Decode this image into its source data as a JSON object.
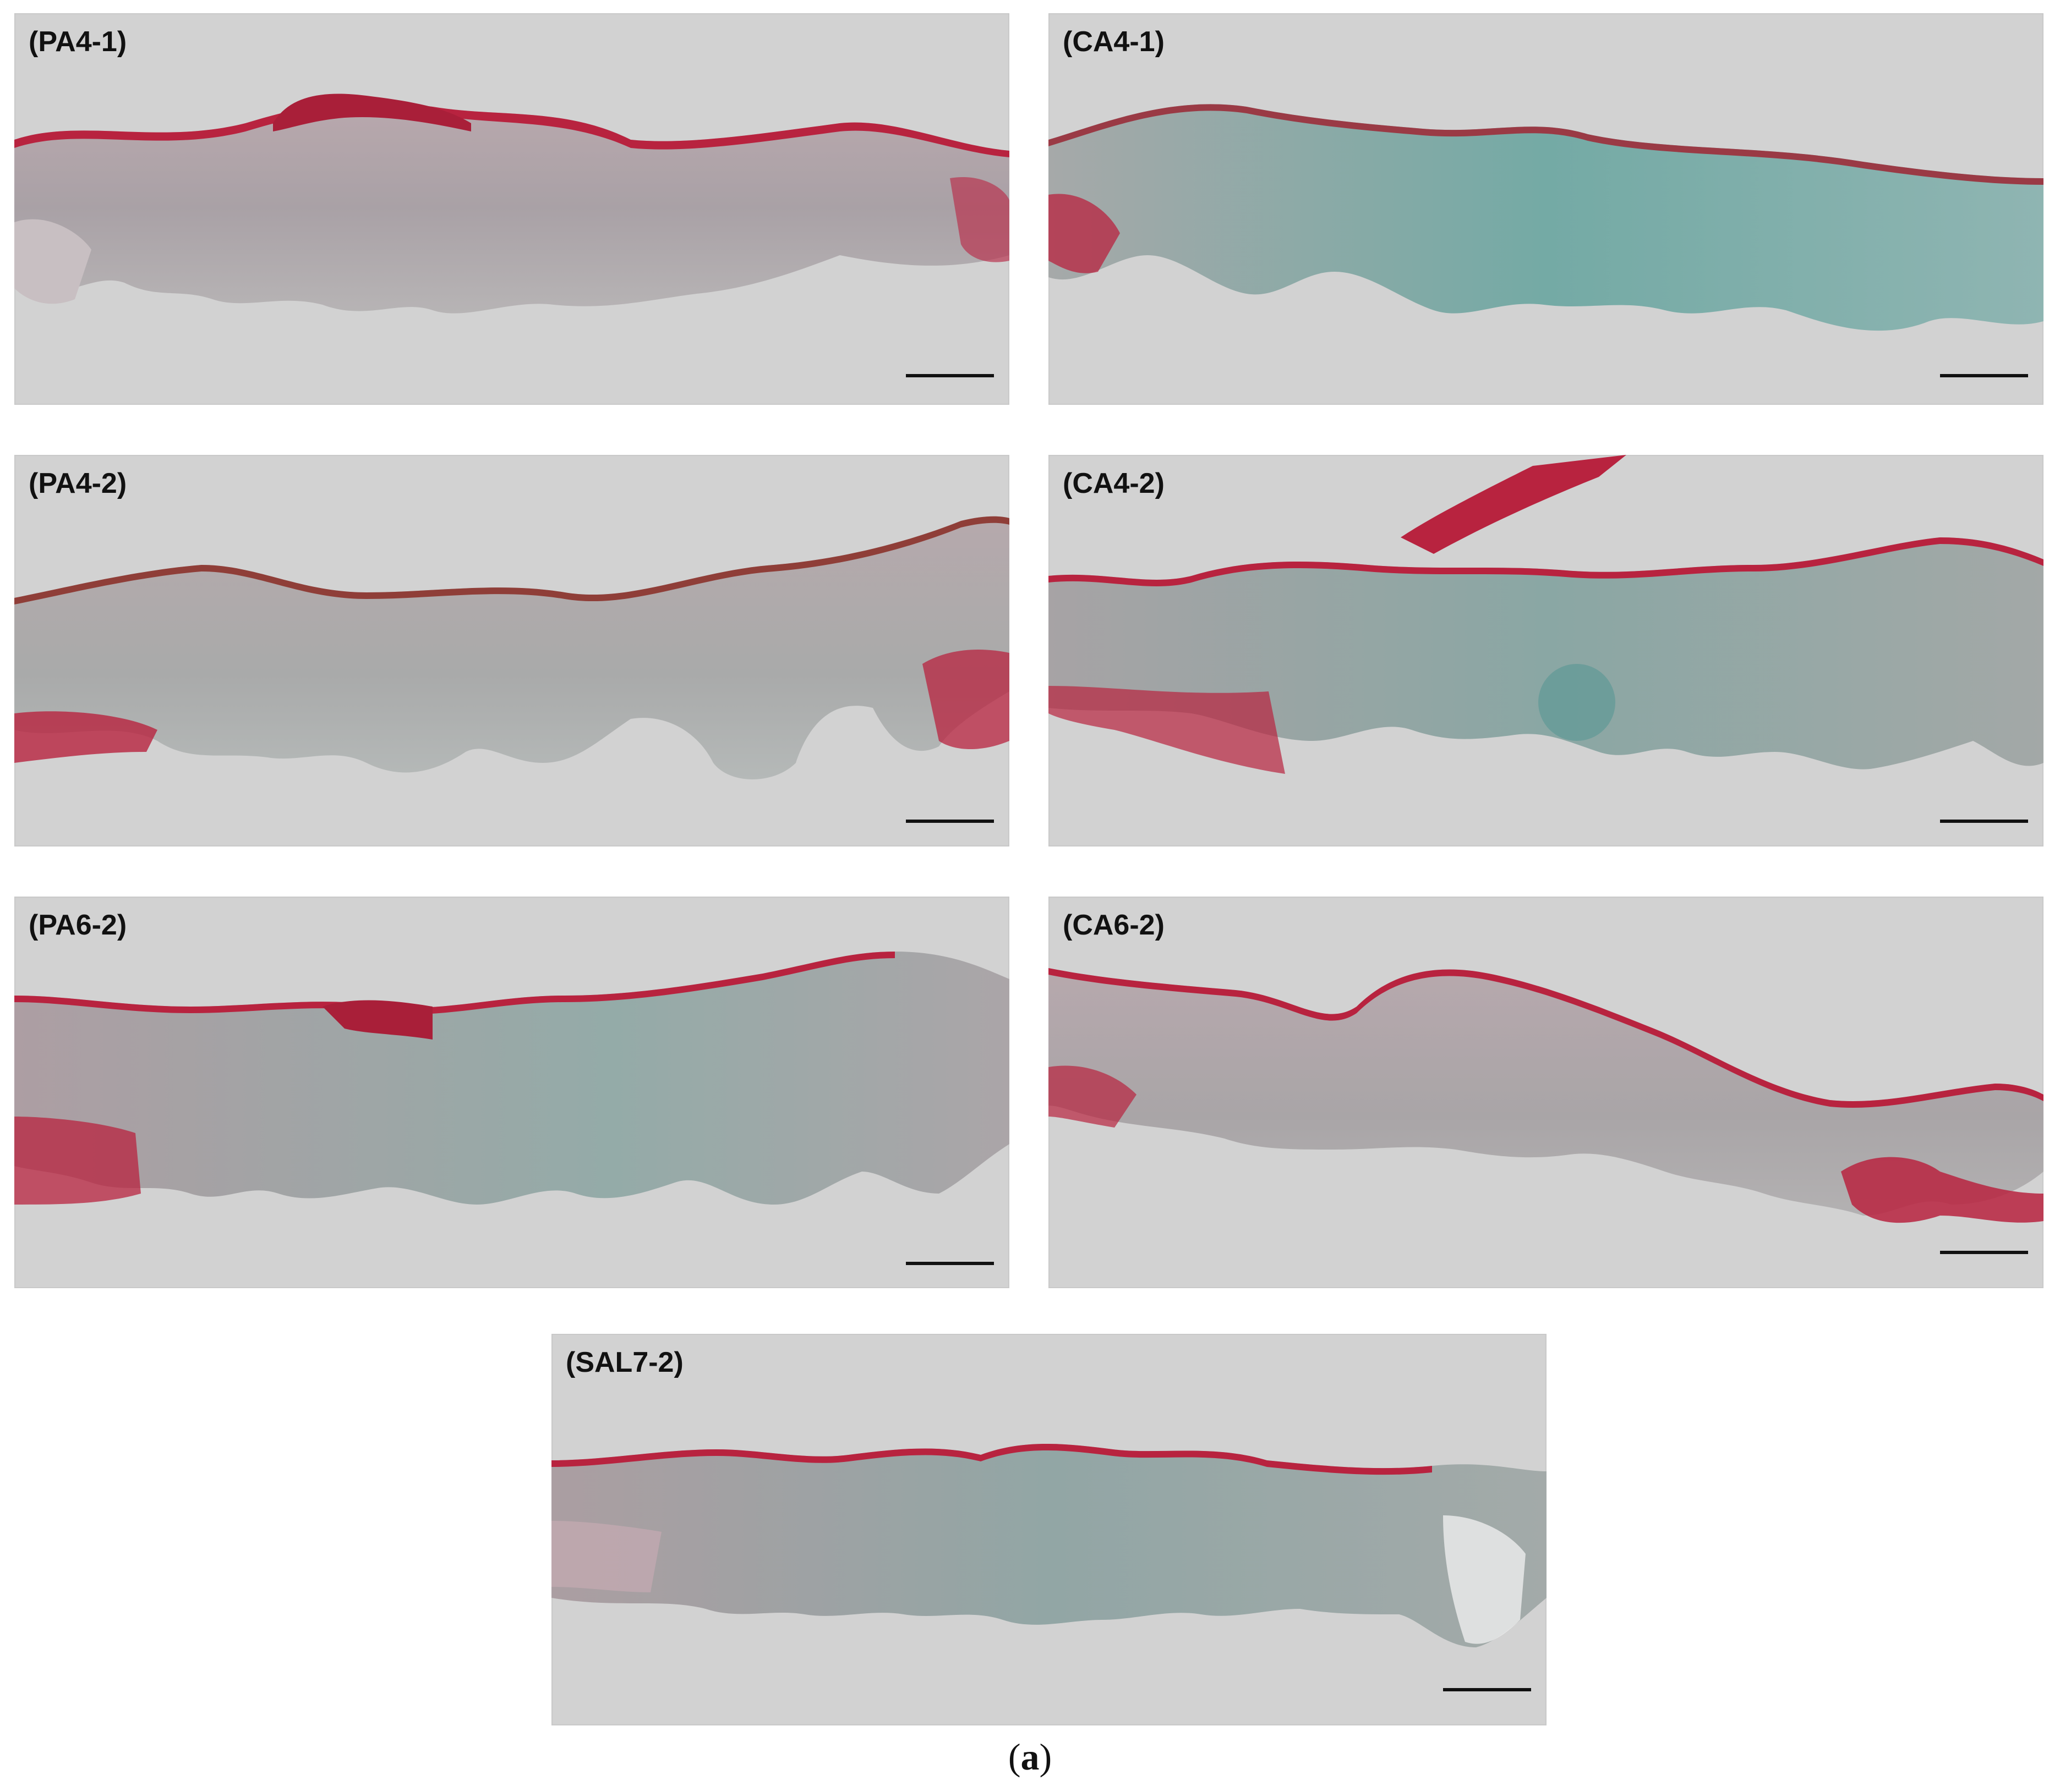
{
  "figure": {
    "caption_open": "(",
    "caption_letter": "a",
    "caption_close": ")"
  },
  "panels": [
    {
      "id": "pa4-1",
      "label": "(PA4-1)"
    },
    {
      "id": "ca4-1",
      "label": "(CA4-1)"
    },
    {
      "id": "pa4-2",
      "label": "(PA4-2)"
    },
    {
      "id": "ca4-2",
      "label": "(CA4-2)"
    },
    {
      "id": "pa6-2",
      "label": "(PA6-2)"
    },
    {
      "id": "ca6-2",
      "label": "(CA6-2)"
    },
    {
      "id": "sal7-2",
      "label": "(SAL7-2)"
    }
  ],
  "colors": {
    "background": "#d2d2d2",
    "epidermis_red": "#b8233f",
    "dermis_grey": "#aaa3a7",
    "collagen_teal": "#5f9f9a",
    "scale_bar": "#111111"
  }
}
